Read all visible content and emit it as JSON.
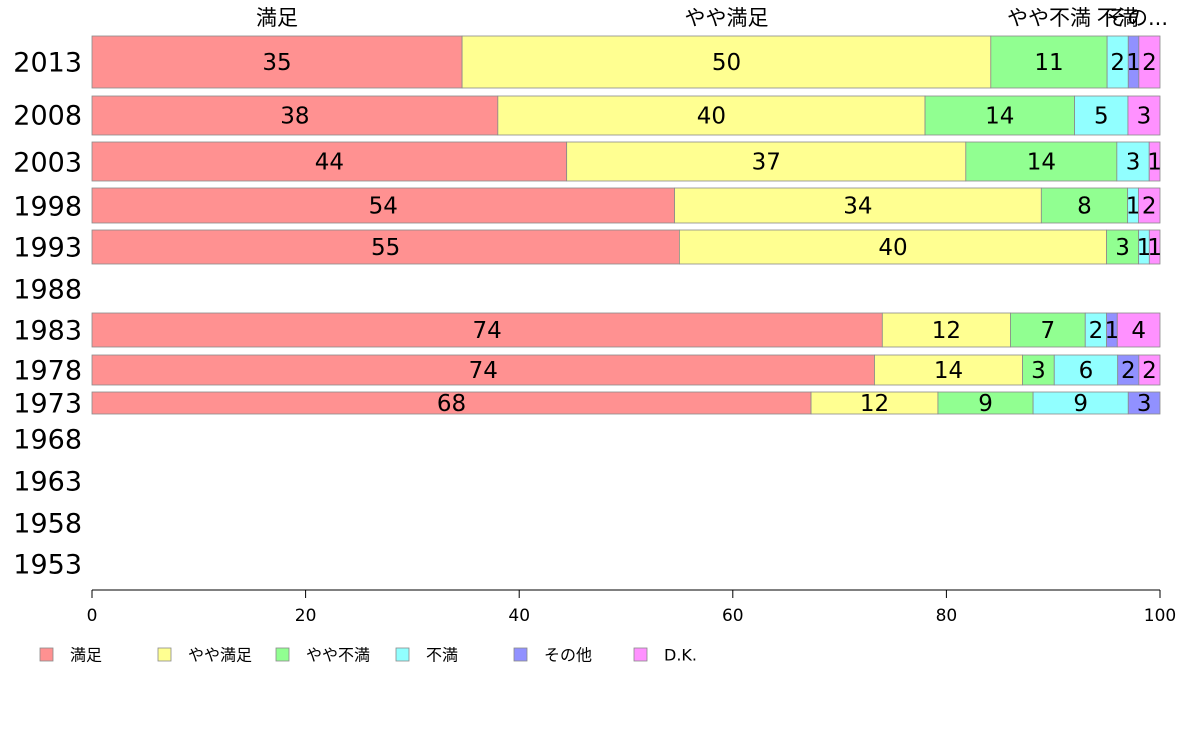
{
  "chart_data": {
    "type": "bar",
    "orientation": "horizontal-stacked",
    "categories": [
      "2013",
      "2008",
      "2003",
      "1998",
      "1993",
      "1988",
      "1983",
      "1978",
      "1973",
      "1968",
      "1963",
      "1958",
      "1953"
    ],
    "series": [
      {
        "name": "満足",
        "color": "#ff9191",
        "values": [
          35,
          38,
          44,
          54,
          55,
          null,
          74,
          74,
          68,
          null,
          null,
          null,
          null
        ]
      },
      {
        "name": "やや満足",
        "color": "#ffff91",
        "values": [
          50,
          40,
          37,
          34,
          40,
          null,
          12,
          14,
          12,
          null,
          null,
          null,
          null
        ]
      },
      {
        "name": "やや不満",
        "color": "#91ff91",
        "values": [
          11,
          14,
          14,
          8,
          3,
          null,
          7,
          3,
          9,
          null,
          null,
          null,
          null
        ]
      },
      {
        "name": "不満",
        "color": "#91ffff",
        "values": [
          2,
          5,
          3,
          1,
          1,
          null,
          2,
          6,
          9,
          null,
          null,
          null,
          null
        ]
      },
      {
        "name": "その他",
        "color": "#9191ff",
        "values": [
          1,
          0,
          0,
          0,
          0,
          null,
          1,
          2,
          3,
          null,
          null,
          null,
          null
        ]
      },
      {
        "name": "D.K.",
        "color": "#ff91ff",
        "values": [
          2,
          3,
          1,
          2,
          1,
          null,
          4,
          2,
          0,
          null,
          null,
          null,
          null
        ]
      }
    ],
    "top_labels": [
      "満足",
      "やや満足",
      "やや不満",
      "不満",
      "その..."
    ],
    "xlim": [
      0,
      100
    ],
    "xticks": [
      0,
      20,
      40,
      60,
      80,
      100
    ],
    "grid": false,
    "legend_position": "bottom"
  }
}
